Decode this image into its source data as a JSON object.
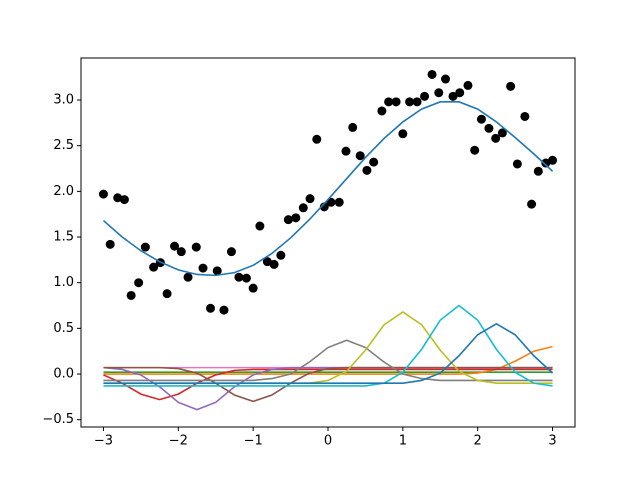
{
  "chart_data": {
    "type": "scatter",
    "xlim": [
      -3.3,
      3.3
    ],
    "ylim": [
      -0.58,
      3.46
    ],
    "xticks": [
      {
        "value": -3,
        "label": "−3"
      },
      {
        "value": -2,
        "label": "−2"
      },
      {
        "value": -1,
        "label": "−1"
      },
      0,
      1,
      2,
      3
    ],
    "yticks": [
      {
        "value": -0.5,
        "label": "−0.5"
      },
      {
        "value": 0,
        "label": "0.0"
      },
      0.5,
      {
        "value": 1,
        "label": "1.0"
      },
      1.5,
      {
        "value": 2,
        "label": "2.0"
      },
      2.5,
      {
        "value": 3,
        "label": "3.0"
      }
    ],
    "color": "#000000",
    "x": [
      -3.0,
      -2.91,
      -2.81,
      -2.72,
      -2.63,
      -2.53,
      -2.44,
      -2.33,
      -2.24,
      -2.15,
      -2.05,
      -1.96,
      -1.87,
      -1.76,
      -1.67,
      -1.57,
      -1.48,
      -1.39,
      -1.29,
      -1.19,
      -1.09,
      -1.0,
      -0.91,
      -0.81,
      -0.72,
      -0.63,
      -0.53,
      -0.43,
      -0.33,
      -0.24,
      -0.15,
      -0.05,
      0.04,
      0.15,
      0.24,
      0.33,
      0.43,
      0.52,
      0.61,
      0.72,
      0.81,
      0.91,
      1.0,
      1.09,
      1.19,
      1.29,
      1.39,
      1.48,
      1.57,
      1.67,
      1.76,
      1.87,
      1.96,
      2.05,
      2.15,
      2.24,
      2.33,
      2.44,
      2.53,
      2.63,
      2.72,
      2.81,
      2.91,
      3.0
    ],
    "values": [
      1.97,
      1.42,
      1.93,
      1.91,
      0.86,
      1.0,
      1.39,
      1.17,
      1.22,
      0.88,
      1.4,
      1.34,
      1.06,
      1.39,
      1.16,
      0.72,
      1.13,
      0.7,
      1.34,
      1.06,
      1.05,
      0.94,
      1.62,
      1.23,
      1.2,
      1.3,
      1.69,
      1.71,
      1.82,
      1.92,
      2.57,
      1.83,
      1.88,
      1.88,
      2.44,
      2.7,
      2.39,
      2.23,
      2.32,
      2.88,
      2.98,
      2.98,
      2.63,
      2.98,
      2.98,
      3.04,
      3.28,
      3.08,
      3.23,
      3.04,
      3.08,
      3.16,
      2.45,
      2.79,
      2.69,
      2.58,
      2.64,
      3.15,
      2.3,
      2.82,
      1.86,
      2.22,
      2.31,
      2.34
    ],
    "line_x": [
      -3,
      -2.75,
      -2.5,
      -2.25,
      -2,
      -1.75,
      -1.5,
      -1.25,
      -1,
      -0.75,
      -0.5,
      -0.25,
      0,
      0.25,
      0.5,
      0.75,
      1,
      1.25,
      1.5,
      1.75,
      2,
      2.25,
      2.5,
      2.75,
      3
    ],
    "series": [
      {
        "color": "#2ca02c",
        "values": [
          0.02,
          0.02,
          0.02,
          0.02,
          0.02,
          0.02,
          0.02,
          0.02,
          0.02,
          0.02,
          0.02,
          0.02,
          0.02,
          0.02,
          0.02,
          0.02,
          0.02,
          0.02,
          0.02,
          0.02,
          0.02,
          0.02,
          0.02,
          0.02,
          0.02
        ]
      },
      {
        "color": "#e377c2",
        "values": [
          0.07,
          0.07,
          0.07,
          0.07,
          0.07,
          0.07,
          0.07,
          0.07,
          0.07,
          0.07,
          0.07,
          0.07,
          0.07,
          0.07,
          0.07,
          0.07,
          0.07,
          0.07,
          0.07,
          0.07,
          0.07,
          0.07,
          0.07,
          0.07,
          0.07
        ]
      },
      {
        "color": "#ff7f0e",
        "values": [
          0,
          0,
          0,
          0,
          0,
          0,
          0,
          0,
          0,
          0,
          0,
          0,
          0,
          0,
          0,
          0,
          0,
          0,
          0,
          0,
          0.01,
          0.05,
          0.14,
          0.25,
          0.3
        ]
      },
      {
        "color": "#d62728",
        "values": [
          -0.01,
          -0.1,
          -0.22,
          -0.28,
          -0.22,
          -0.1,
          -0.01,
          0.04,
          0.05,
          0.05,
          0.05,
          0.05,
          0.05,
          0.05,
          0.05,
          0.05,
          0.05,
          0.05,
          0.05,
          0.05,
          0.05,
          0.05,
          0.05,
          0.05,
          0.05
        ]
      },
      {
        "color": "#9467bd",
        "values": [
          0.07,
          0.05,
          -0.01,
          -0.14,
          -0.31,
          -0.39,
          -0.31,
          -0.14,
          -0.01,
          0.05,
          0.07,
          0.07,
          0.07,
          0.07,
          0.07,
          0.07,
          0.07,
          0.07,
          0.07,
          0.07,
          0.07,
          0.07,
          0.07,
          0.07,
          0.07
        ]
      },
      {
        "color": "#8c564b",
        "values": [
          0.07,
          0.07,
          0.07,
          0.07,
          0.06,
          0.01,
          -0.1,
          -0.23,
          -0.3,
          -0.23,
          -0.1,
          0.01,
          0.06,
          0.07,
          0.07,
          0.07,
          0.07,
          0.07,
          0.07,
          0.07,
          0.07,
          0.07,
          0.07,
          0.07,
          0.07
        ]
      },
      {
        "color": "#7f7f7f",
        "values": [
          -0.07,
          -0.07,
          -0.07,
          -0.07,
          -0.07,
          -0.07,
          -0.07,
          -0.07,
          -0.07,
          -0.05,
          0,
          0.13,
          0.29,
          0.37,
          0.29,
          0.13,
          0,
          -0.05,
          -0.07,
          -0.07,
          -0.07,
          -0.07,
          -0.07,
          -0.07,
          -0.07
        ]
      },
      {
        "color": "#bcbd22",
        "values": [
          -0.1,
          -0.1,
          -0.1,
          -0.1,
          -0.1,
          -0.1,
          -0.1,
          -0.1,
          -0.1,
          -0.1,
          -0.1,
          -0.1,
          -0.07,
          0.03,
          0.26,
          0.54,
          0.68,
          0.54,
          0.26,
          0.03,
          -0.07,
          -0.1,
          -0.1,
          -0.1,
          -0.1
        ]
      },
      {
        "color": "#17becf",
        "values": [
          -0.13,
          -0.13,
          -0.13,
          -0.13,
          -0.13,
          -0.13,
          -0.13,
          -0.13,
          -0.13,
          -0.13,
          -0.13,
          -0.13,
          -0.13,
          -0.13,
          -0.13,
          -0.1,
          0.02,
          0.27,
          0.59,
          0.75,
          0.59,
          0.27,
          0.02,
          -0.1,
          -0.13
        ]
      },
      {
        "color": "#1f77b4",
        "values": [
          -0.1,
          -0.1,
          -0.1,
          -0.1,
          -0.1,
          -0.1,
          -0.1,
          -0.1,
          -0.1,
          -0.1,
          -0.1,
          -0.1,
          -0.1,
          -0.1,
          -0.1,
          -0.1,
          -0.1,
          -0.07,
          0.01,
          0.2,
          0.43,
          0.55,
          0.43,
          0.2,
          0.01
        ]
      },
      {
        "color": "#1f77b4",
        "values": [
          1.68,
          1.5,
          1.35,
          1.23,
          1.14,
          1.09,
          1.08,
          1.11,
          1.19,
          1.32,
          1.49,
          1.69,
          1.91,
          2.14,
          2.37,
          2.58,
          2.76,
          2.9,
          2.98,
          2.98,
          2.9,
          2.76,
          2.59,
          2.41,
          2.22
        ]
      }
    ]
  }
}
